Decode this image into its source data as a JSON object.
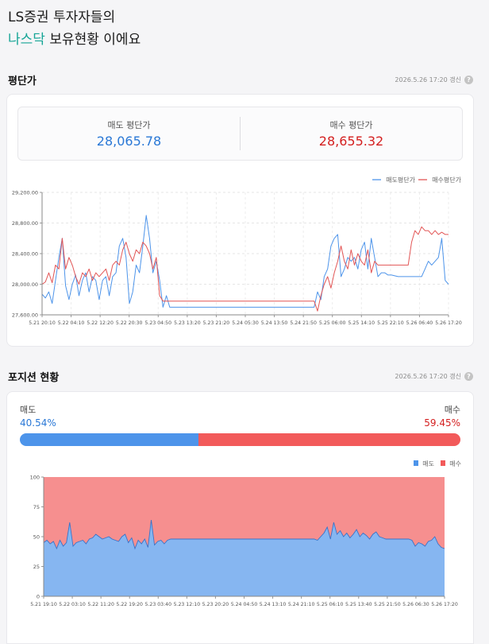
{
  "header": {
    "line1": "LS증권 투자자들의",
    "accent": "나스닥",
    "line2_rest": " 보유현황 이에요"
  },
  "avg_price": {
    "title": "평단가",
    "updated": "2026.5.26 17:20 갱신",
    "sell_label": "매도 평단가",
    "sell_value": "28,065.78",
    "buy_label": "매수 평단가",
    "buy_value": "28,655.32"
  },
  "position": {
    "title": "포지션 현황",
    "updated": "2026.5.26 17:20 갱신",
    "sell_label": "매도",
    "sell_pct": "40.54%",
    "buy_label": "매수",
    "buy_pct": "59.45%",
    "sell_ratio": 40.54
  },
  "colors": {
    "sell": "#4d94ea",
    "buy": "#f25a5a",
    "accent": "#16a596"
  },
  "chart_data": [
    {
      "type": "line",
      "legend_position": "top-right",
      "grid": true,
      "ylim": [
        27600,
        29200
      ],
      "y_ticks": [
        "29,200.00",
        "28,800.00",
        "28,400.00",
        "28,000.00",
        "27,600.00"
      ],
      "y_tick_values": [
        29200,
        28800,
        28400,
        28000,
        27600
      ],
      "x_ticks": [
        "5.21 20:10",
        "5.22 04:10",
        "5.22 12:20",
        "5.22 20:30",
        "5.23 04:50",
        "5.23 13:20",
        "5.23 21:20",
        "5.24 05:30",
        "5.24 13:50",
        "5.24 21:50",
        "5.25 06:00",
        "5.25 14:10",
        "5.25 22:10",
        "5.26 06:40",
        "5.26 17:20"
      ],
      "series": [
        {
          "name": "매도평단가",
          "color": "#4d94ea",
          "values": [
            27870,
            27820,
            27900,
            27750,
            28050,
            28350,
            28600,
            27980,
            27800,
            28000,
            28120,
            27850,
            28050,
            28150,
            27900,
            28100,
            28050,
            27800,
            28050,
            28100,
            27850,
            28100,
            28150,
            28500,
            28600,
            28350,
            27750,
            27900,
            28250,
            28150,
            28500,
            28900,
            28600,
            28150,
            28300,
            28050,
            27700,
            27850,
            27700,
            27700,
            27700,
            27700,
            27700,
            27700,
            27700,
            27700,
            27700,
            27700,
            27700,
            27700,
            27700,
            27700,
            27700,
            27700,
            27700,
            27700,
            27700,
            27700,
            27700,
            27700,
            27700,
            27700,
            27700,
            27700,
            27700,
            27700,
            27700,
            27700,
            27700,
            27700,
            27700,
            27700,
            27700,
            27700,
            27700,
            27700,
            27700,
            27700,
            27700,
            27700,
            27700,
            27700,
            27900,
            27800,
            28100,
            28200,
            28500,
            28600,
            28650,
            28100,
            28200,
            28350,
            28300,
            28350,
            28200,
            28450,
            28550,
            28200,
            28600,
            28350,
            28100,
            28150,
            28150,
            28120,
            28120,
            28110,
            28100,
            28100,
            28100,
            28100,
            28100,
            28100,
            28100,
            28100,
            28200,
            28300,
            28250,
            28300,
            28350,
            28600,
            28050,
            28000
          ]
        },
        {
          "name": "매수평단가",
          "color": "#e25555",
          "values": [
            28000,
            28030,
            28150,
            28020,
            28250,
            28200,
            28600,
            28200,
            28350,
            28250,
            28100,
            28000,
            28150,
            28100,
            28200,
            28050,
            28150,
            28100,
            28150,
            28200,
            28050,
            28250,
            28300,
            28250,
            28450,
            28550,
            28400,
            28300,
            28450,
            28400,
            28550,
            28500,
            28400,
            28200,
            28350,
            27850,
            27780,
            27780,
            27780,
            27780,
            27780,
            27780,
            27780,
            27780,
            27780,
            27780,
            27780,
            27780,
            27780,
            27780,
            27780,
            27780,
            27780,
            27780,
            27780,
            27780,
            27780,
            27780,
            27780,
            27780,
            27780,
            27780,
            27780,
            27780,
            27780,
            27780,
            27780,
            27780,
            27780,
            27780,
            27780,
            27780,
            27780,
            27780,
            27780,
            27780,
            27780,
            27780,
            27780,
            27780,
            27780,
            27780,
            27650,
            27850,
            28000,
            28100,
            27950,
            28150,
            28300,
            28500,
            28300,
            28200,
            28450,
            28250,
            28400,
            28300,
            28250,
            28450,
            28150,
            28300,
            28250,
            28250,
            28250,
            28250,
            28250,
            28250,
            28250,
            28250,
            28250,
            28250,
            28550,
            28700,
            28650,
            28750,
            28700,
            28700,
            28650,
            28700,
            28650,
            28680,
            28650,
            28650
          ]
        }
      ]
    },
    {
      "type": "area",
      "legend_position": "top-right",
      "grid": false,
      "ylim": [
        0,
        100
      ],
      "y_ticks": [
        "100",
        "75",
        "50",
        "25",
        "0"
      ],
      "y_tick_values": [
        100,
        75,
        50,
        25,
        0
      ],
      "x_ticks": [
        "5.21 19:10",
        "5.22 03:10",
        "5.22 11:20",
        "5.22 19:20",
        "5.23 03:40",
        "5.23 12:10",
        "5.23 20:20",
        "5.24 04:50",
        "5.24 13:10",
        "5.24 21:10",
        "5.25 06:10",
        "5.25 13:40",
        "5.25 21:50",
        "5.26 06:30",
        "5.26 17:20"
      ],
      "series": [
        {
          "name": "매도",
          "color": "#4d94ea",
          "values": [
            45,
            47,
            44,
            46,
            40,
            47,
            42,
            45,
            62,
            42,
            45,
            46,
            47,
            44,
            48,
            49,
            52,
            50,
            48,
            49,
            50,
            48,
            47,
            46,
            50,
            52,
            45,
            49,
            40,
            47,
            44,
            48,
            41,
            64,
            43,
            46,
            47,
            44,
            47,
            48,
            48,
            48,
            48,
            48,
            48,
            48,
            48,
            48,
            48,
            48,
            48,
            48,
            48,
            48,
            48,
            48,
            48,
            48,
            48,
            48,
            48,
            48,
            48,
            48,
            48,
            48,
            48,
            48,
            48,
            48,
            48,
            48,
            48,
            48,
            48,
            48,
            48,
            48,
            48,
            48,
            48,
            48,
            48,
            48,
            47,
            50,
            53,
            58,
            48,
            62,
            52,
            55,
            50,
            53,
            49,
            52,
            56,
            50,
            53,
            51,
            48,
            52,
            54,
            50,
            49,
            48,
            48,
            48,
            48,
            48,
            48,
            48,
            48,
            47,
            42,
            45,
            44,
            42,
            46,
            47,
            50,
            44,
            41,
            40
          ]
        },
        {
          "name": "매수",
          "color": "#f25a5a",
          "values": [
            55,
            53,
            56,
            54,
            60,
            53,
            58,
            55,
            38,
            58,
            55,
            54,
            53,
            56,
            52,
            51,
            48,
            50,
            52,
            51,
            50,
            52,
            53,
            54,
            50,
            48,
            55,
            51,
            60,
            53,
            56,
            52,
            59,
            36,
            57,
            54,
            53,
            56,
            53,
            52,
            52,
            52,
            52,
            52,
            52,
            52,
            52,
            52,
            52,
            52,
            52,
            52,
            52,
            52,
            52,
            52,
            52,
            52,
            52,
            52,
            52,
            52,
            52,
            52,
            52,
            52,
            52,
            52,
            52,
            52,
            52,
            52,
            52,
            52,
            52,
            52,
            52,
            52,
            52,
            52,
            52,
            52,
            52,
            52,
            53,
            50,
            47,
            42,
            52,
            38,
            48,
            45,
            50,
            47,
            51,
            48,
            44,
            50,
            47,
            49,
            52,
            48,
            46,
            50,
            51,
            52,
            52,
            52,
            52,
            52,
            52,
            52,
            52,
            53,
            58,
            55,
            56,
            58,
            54,
            53,
            50,
            56,
            59,
            60
          ]
        }
      ]
    }
  ]
}
